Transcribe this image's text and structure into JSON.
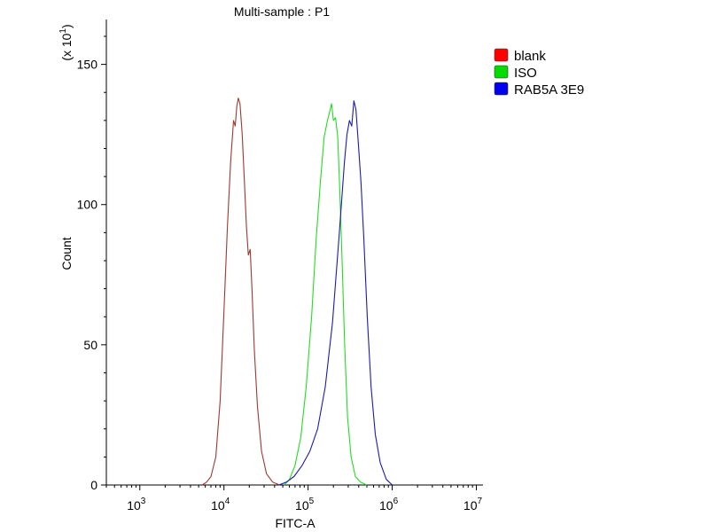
{
  "chart_data": {
    "type": "line",
    "title": "Multi-sample : P1",
    "xlabel": "FITC-A",
    "ylabel": "Count",
    "y_multiplier": "(x 10",
    "y_multiplier_exp": "1",
    "y_multiplier_close": ")",
    "x_scale": "log",
    "xlim": [
      400,
      12000000
    ],
    "ylim": [
      0,
      166
    ],
    "x_ticks": [
      {
        "value": 1000,
        "base": "10",
        "exp": "3"
      },
      {
        "value": 10000,
        "base": "10",
        "exp": "4"
      },
      {
        "value": 100000,
        "base": "10",
        "exp": "5"
      },
      {
        "value": 1000000,
        "base": "10",
        "exp": "6"
      },
      {
        "value": 10000000,
        "base": "10",
        "exp": "7"
      }
    ],
    "y_ticks": [
      {
        "value": 0,
        "label": "0"
      },
      {
        "value": 50,
        "label": "50"
      },
      {
        "value": 100,
        "label": "100"
      },
      {
        "value": 150,
        "label": "150"
      }
    ],
    "grid": false,
    "legend_position": "top-right",
    "series": [
      {
        "name": "blank",
        "color": "#9b3a33",
        "legend_color": "#ff0000",
        "points": [
          [
            5500,
            0
          ],
          [
            6200,
            1
          ],
          [
            7000,
            3
          ],
          [
            8000,
            10
          ],
          [
            9000,
            30
          ],
          [
            10000,
            62
          ],
          [
            11000,
            92
          ],
          [
            12000,
            115
          ],
          [
            13000,
            130
          ],
          [
            13600,
            128
          ],
          [
            14200,
            135
          ],
          [
            14800,
            138
          ],
          [
            15500,
            136
          ],
          [
            16500,
            125
          ],
          [
            17500,
            108
          ],
          [
            18500,
            92
          ],
          [
            19500,
            82
          ],
          [
            20500,
            84
          ],
          [
            21500,
            70
          ],
          [
            23000,
            48
          ],
          [
            25000,
            28
          ],
          [
            28000,
            12
          ],
          [
            32000,
            4
          ],
          [
            38000,
            1
          ],
          [
            46000,
            0
          ]
        ]
      },
      {
        "name": "ISO",
        "color": "#22dd22",
        "legend_color": "#00dd00",
        "points": [
          [
            52000,
            0
          ],
          [
            60000,
            2
          ],
          [
            70000,
            7
          ],
          [
            82000,
            17
          ],
          [
            95000,
            35
          ],
          [
            110000,
            60
          ],
          [
            125000,
            88
          ],
          [
            140000,
            108
          ],
          [
            155000,
            124
          ],
          [
            170000,
            130
          ],
          [
            180000,
            133
          ],
          [
            190000,
            136
          ],
          [
            200000,
            130
          ],
          [
            212000,
            131
          ],
          [
            225000,
            124
          ],
          [
            238000,
            105
          ],
          [
            255000,
            78
          ],
          [
            272000,
            50
          ],
          [
            295000,
            24
          ],
          [
            325000,
            10
          ],
          [
            365000,
            3
          ],
          [
            420000,
            1
          ],
          [
            500000,
            0
          ]
        ]
      },
      {
        "name": "RAB5A 3E9",
        "color": "#1b1bb0",
        "legend_color": "#0000ee",
        "points": [
          [
            45000,
            0
          ],
          [
            55000,
            1
          ],
          [
            68000,
            3
          ],
          [
            85000,
            7
          ],
          [
            105000,
            12
          ],
          [
            130000,
            20
          ],
          [
            160000,
            35
          ],
          [
            195000,
            58
          ],
          [
            235000,
            90
          ],
          [
            270000,
            115
          ],
          [
            290000,
            125
          ],
          [
            310000,
            130
          ],
          [
            330000,
            128
          ],
          [
            350000,
            137
          ],
          [
            370000,
            134
          ],
          [
            395000,
            122
          ],
          [
            425000,
            108
          ],
          [
            460000,
            88
          ],
          [
            505000,
            60
          ],
          [
            560000,
            35
          ],
          [
            630000,
            18
          ],
          [
            720000,
            8
          ],
          [
            850000,
            2
          ],
          [
            1000000,
            0
          ]
        ]
      }
    ]
  }
}
